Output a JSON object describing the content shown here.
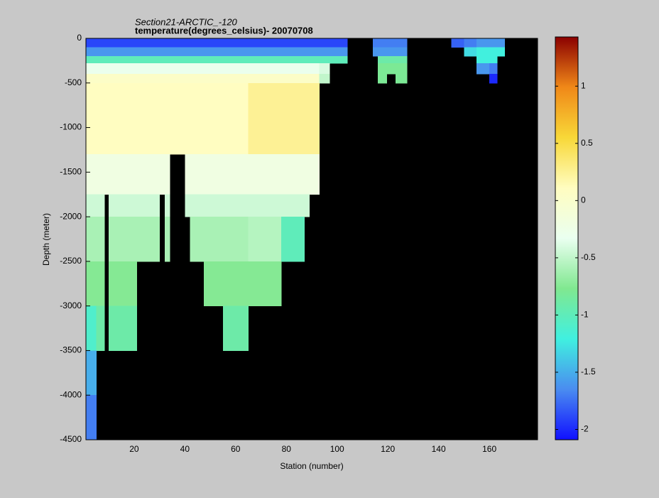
{
  "chart_data": {
    "type": "heatmap",
    "title": "Section21-ARCTIC_-120",
    "subtitle": "temperature(degrees_celsius)- 20070708",
    "xlabel": "Station (number)",
    "ylabel": "Depth (meter)",
    "xlim": [
      1,
      179
    ],
    "ylim": [
      -4500,
      0
    ],
    "xticks": [
      20,
      40,
      60,
      80,
      100,
      120,
      140,
      160
    ],
    "yticks": [
      -4500,
      -4000,
      -3500,
      -3000,
      -2500,
      -2000,
      -1500,
      -1000,
      -500,
      0
    ],
    "nodata_color": "#000000",
    "colormap": [
      "#1010ff",
      "#4a8cf0",
      "#40f0e0",
      "#80e890",
      "#eafff0",
      "#fffdc0",
      "#f8d838",
      "#f08818",
      "#8b0000"
    ],
    "clim": [
      -2.09,
      1.43
    ],
    "colorbar_ticks": [
      -2,
      -1.5,
      -1,
      -0.5,
      0,
      0.5,
      1
    ],
    "x_edges": [
      1,
      5,
      8.3,
      10,
      11,
      21,
      30,
      32,
      34,
      37,
      40,
      42,
      47.5,
      55,
      65,
      78,
      87,
      89,
      93,
      97,
      104,
      114,
      116,
      119.5,
      123,
      127.5,
      145,
      150,
      155,
      160,
      163,
      166
    ],
    "y_edges": [
      0,
      -100,
      -200,
      -280,
      -400,
      -500,
      -1300,
      -1750,
      -2000,
      -2500,
      -3000,
      -3500,
      -4000,
      -4500
    ],
    "values": [
      [
        -1.9,
        -1.9,
        -1.9,
        -1.9,
        -1.9,
        -1.9,
        -1.9,
        -1.9,
        -1.9,
        -1.9,
        -1.9,
        -1.9,
        -1.9,
        -1.9,
        -1.9,
        -1.9,
        -1.9,
        -1.9,
        -1.9,
        -1.9,
        null,
        -1.7,
        -1.7,
        -1.7,
        -1.7,
        null,
        -1.8,
        -1.7,
        -1.6,
        -1.6,
        -1.6
      ],
      [
        -1.6,
        -1.6,
        -1.6,
        -1.6,
        -1.6,
        -1.6,
        -1.6,
        -1.6,
        -1.6,
        -1.6,
        -1.6,
        -1.6,
        -1.6,
        -1.6,
        -1.6,
        -1.6,
        -1.6,
        -1.6,
        -1.6,
        -1.6,
        null,
        -1.6,
        -1.6,
        -1.6,
        -1.6,
        null,
        null,
        -1.3,
        -1.2,
        -1.2,
        -1.2
      ],
      [
        -1.0,
        -1.0,
        -1.0,
        -1.0,
        -1.0,
        -1.0,
        -1.0,
        -1.0,
        -1.0,
        -1.0,
        -1.0,
        -1.0,
        -1.0,
        -1.0,
        -1.0,
        -1.0,
        -1.0,
        -1.0,
        -1.0,
        -1.0,
        null,
        null,
        -0.9,
        -0.9,
        -0.9,
        null,
        null,
        null,
        -1.2,
        -1.2,
        null
      ],
      [
        -0.3,
        -0.3,
        -0.3,
        -0.3,
        -0.3,
        -0.3,
        -0.3,
        -0.3,
        -0.3,
        -0.3,
        -0.3,
        -0.3,
        -0.3,
        -0.3,
        -0.3,
        -0.3,
        -0.3,
        -0.3,
        -0.4,
        null,
        null,
        null,
        -0.8,
        -0.8,
        -0.8,
        null,
        null,
        null,
        -1.6,
        -1.7,
        null
      ],
      [
        0.05,
        0.05,
        0.05,
        0.05,
        0.05,
        0.05,
        0.05,
        0.05,
        0.05,
        0.05,
        0.05,
        0.05,
        0.05,
        0.05,
        0.05,
        0.05,
        0.05,
        0.05,
        -0.5,
        null,
        null,
        null,
        -0.8,
        null,
        -0.8,
        null,
        null,
        null,
        null,
        -2.0,
        null
      ],
      [
        0.1,
        0.1,
        0.1,
        0.1,
        0.1,
        0.1,
        0.1,
        0.1,
        0.1,
        0.1,
        0.1,
        0.1,
        0.1,
        0.1,
        0.25,
        0.25,
        0.25,
        0.25,
        null,
        null,
        null,
        null,
        null,
        null,
        null,
        null,
        null,
        null,
        null,
        null,
        null
      ],
      [
        -0.2,
        -0.2,
        -0.2,
        -0.2,
        -0.2,
        -0.2,
        -0.2,
        -0.2,
        null,
        null,
        -0.2,
        -0.2,
        -0.2,
        -0.2,
        -0.2,
        -0.2,
        -0.2,
        -0.2,
        null,
        null,
        null,
        null,
        null,
        null,
        null,
        null,
        null,
        null,
        null,
        null,
        null
      ],
      [
        -0.45,
        -0.45,
        null,
        -0.45,
        -0.45,
        -0.45,
        null,
        -0.45,
        null,
        null,
        -0.45,
        -0.45,
        -0.45,
        -0.45,
        -0.45,
        -0.45,
        -0.45,
        null,
        null,
        null,
        null,
        null,
        null,
        null,
        null,
        null,
        null,
        null,
        null,
        null,
        null
      ],
      [
        -0.6,
        -0.6,
        null,
        -0.6,
        -0.6,
        -0.6,
        null,
        -0.6,
        null,
        null,
        null,
        -0.6,
        -0.6,
        -0.6,
        -0.55,
        -1.0,
        null,
        null,
        null,
        null,
        null,
        null,
        null,
        null,
        null,
        null,
        null,
        null,
        null,
        null,
        null
      ],
      [
        -0.75,
        -0.75,
        null,
        -0.75,
        -0.75,
        null,
        null,
        null,
        null,
        null,
        null,
        null,
        -0.75,
        -0.75,
        -0.75,
        null,
        null,
        null,
        null,
        null,
        null,
        null,
        null,
        null,
        null,
        null,
        null,
        null,
        null,
        null,
        null
      ],
      [
        -1.1,
        -0.9,
        null,
        -0.9,
        -0.9,
        null,
        null,
        null,
        null,
        null,
        null,
        null,
        null,
        -0.9,
        null,
        null,
        null,
        null,
        null,
        null,
        null,
        null,
        null,
        null,
        null,
        null,
        null,
        null,
        null,
        null,
        null
      ],
      [
        -1.5,
        null,
        null,
        null,
        null,
        null,
        null,
        null,
        null,
        null,
        null,
        null,
        null,
        null,
        null,
        null,
        null,
        null,
        null,
        null,
        null,
        null,
        null,
        null,
        null,
        null,
        null,
        null,
        null,
        null,
        null
      ],
      [
        -1.7,
        null,
        null,
        null,
        null,
        null,
        null,
        null,
        null,
        null,
        null,
        null,
        null,
        null,
        null,
        null,
        null,
        null,
        null,
        null,
        null,
        null,
        null,
        null,
        null,
        null,
        null,
        null,
        null,
        null,
        null
      ]
    ]
  }
}
